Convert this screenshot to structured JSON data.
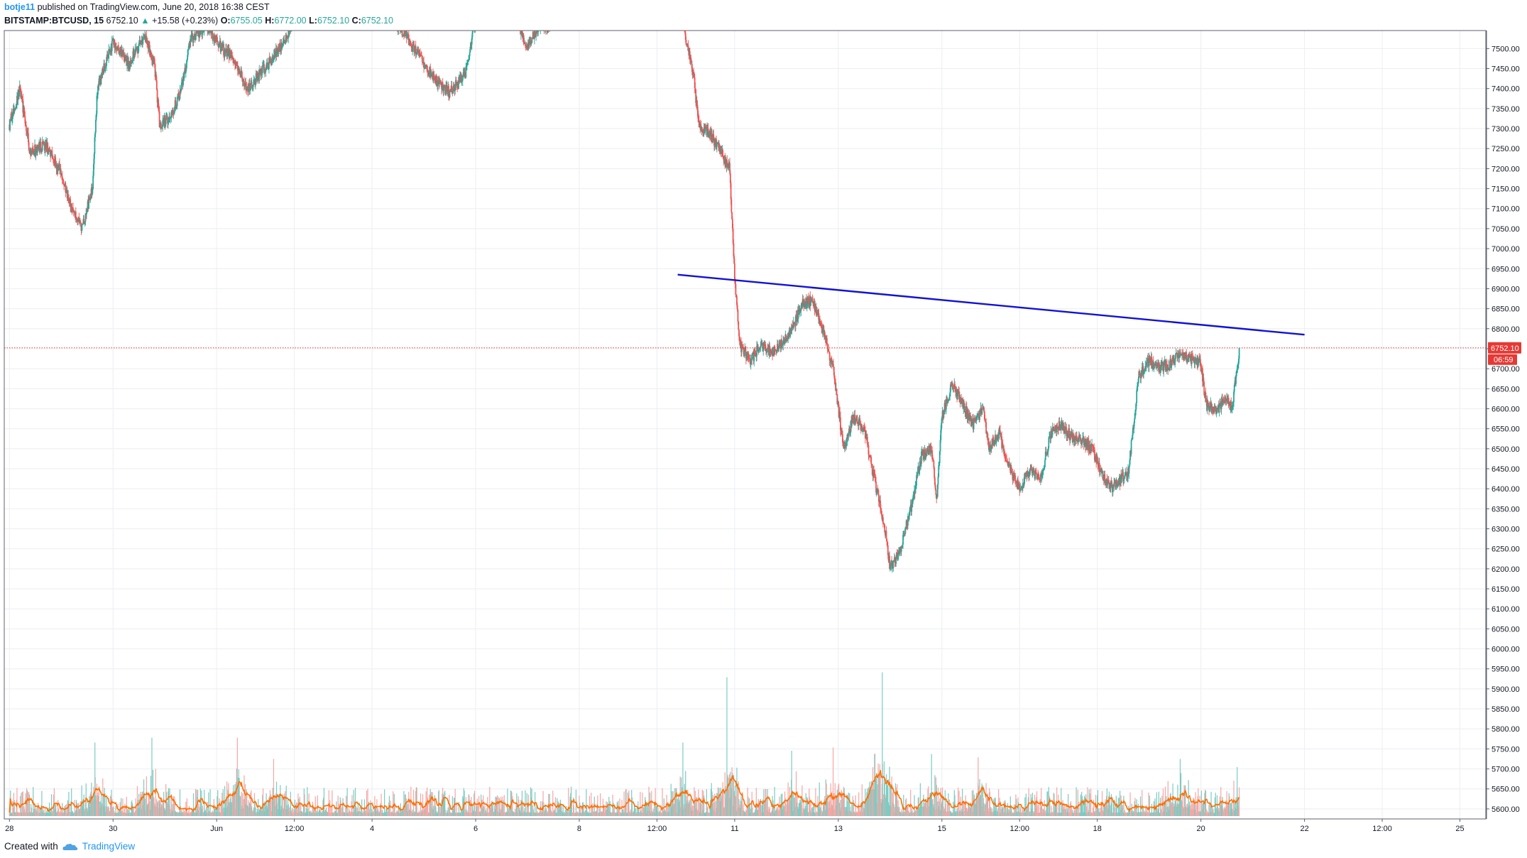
{
  "header": {
    "user": "botje11",
    "published": "published on TradingView.com, June 20, 2018 16:38 CEST",
    "symbol": "BITSTAMP:BTCUSD, 15",
    "last": "6752.10",
    "change_arrow": "▲",
    "change": "+15.58 (+0.23%)",
    "o_label": "O:",
    "o": "6755.05",
    "h_label": "H:",
    "h": "6772.00",
    "l_label": "L:",
    "l": "6752.10",
    "c_label": "C:",
    "c": "6752.10"
  },
  "footer": {
    "created_with": "Created with",
    "brand": "TradingView",
    "logo_icon": "tradingview-cloud-icon"
  },
  "colors": {
    "up": "#26a69a",
    "down": "#ef5350",
    "trendline": "#1212d6",
    "price_line": "#e53935",
    "volume_ma": "#ff6f00"
  },
  "chart_data": {
    "type": "candlestick",
    "timeframe": "15",
    "y_axis": {
      "ticks": [
        7500,
        7450,
        7400,
        7350,
        7300,
        7250,
        7200,
        7150,
        7100,
        7050,
        7000,
        6950,
        6900,
        6850,
        6800,
        6750,
        6700,
        6650,
        6600,
        6550,
        6500,
        6450,
        6400,
        6350,
        6300,
        6250,
        6200,
        6150,
        6100,
        6050,
        6000,
        5950,
        5900,
        5850,
        5800,
        5750,
        5700,
        5650,
        5600
      ],
      "tick_labels": [
        "7500.00",
        "7450.00",
        "7400.00",
        "7350.00",
        "7300.00",
        "7250.00",
        "7200.00",
        "7150.00",
        "7100.00",
        "7050.00",
        "7000.00",
        "6950.00",
        "6900.00",
        "6850.00",
        "6800.00",
        "6750.00",
        "6700.00",
        "6650.00",
        "6600.00",
        "6550.00",
        "6500.00",
        "6450.00",
        "6400.00",
        "6350.00",
        "6300.00",
        "6250.00",
        "6200.00",
        "6150.00",
        "6100.00",
        "6050.00",
        "6000.00",
        "5950.00",
        "5900.00",
        "5850.00",
        "5800.00",
        "5750.00",
        "5700.00",
        "5650.00",
        "5600.00"
      ],
      "range": [
        5575,
        7545
      ]
    },
    "x_axis": {
      "range_days": [
        -0.1,
        28.5
      ],
      "ticks": [
        {
          "day": 0.0,
          "label": "28"
        },
        {
          "day": 2.0,
          "label": "30"
        },
        {
          "day": 4.0,
          "label": "Jun"
        },
        {
          "day": 5.5,
          "label": "12:00"
        },
        {
          "day": 7.0,
          "label": "4"
        },
        {
          "day": 9.0,
          "label": "6"
        },
        {
          "day": 11.0,
          "label": "8"
        },
        {
          "day": 12.5,
          "label": "12:00"
        },
        {
          "day": 14.0,
          "label": "11"
        },
        {
          "day": 16.0,
          "label": "13"
        },
        {
          "day": 18.0,
          "label": "15"
        },
        {
          "day": 19.5,
          "label": "12:00"
        },
        {
          "day": 21.0,
          "label": "18"
        },
        {
          "day": 23.0,
          "label": "20"
        },
        {
          "day": 25.0,
          "label": "22"
        },
        {
          "day": 26.5,
          "label": "12:00"
        },
        {
          "day": 28.0,
          "label": "25"
        }
      ]
    },
    "price_path": [
      [
        0.0,
        7310
      ],
      [
        0.2,
        7400
      ],
      [
        0.4,
        7240
      ],
      [
        0.7,
        7260
      ],
      [
        1.0,
        7190
      ],
      [
        1.2,
        7100
      ],
      [
        1.4,
        7050
      ],
      [
        1.6,
        7150
      ],
      [
        1.7,
        7400
      ],
      [
        2.0,
        7520
      ],
      [
        2.3,
        7460
      ],
      [
        2.6,
        7530
      ],
      [
        2.8,
        7460
      ],
      [
        2.9,
        7310
      ],
      [
        3.1,
        7330
      ],
      [
        3.3,
        7390
      ],
      [
        3.5,
        7520
      ],
      [
        3.8,
        7560
      ],
      [
        4.1,
        7500
      ],
      [
        4.3,
        7480
      ],
      [
        4.6,
        7400
      ],
      [
        4.8,
        7430
      ],
      [
        5.1,
        7480
      ],
      [
        5.3,
        7520
      ],
      [
        5.5,
        7570
      ],
      [
        6.0,
        7700
      ],
      [
        7.0,
        7680
      ],
      [
        7.5,
        7560
      ],
      [
        7.7,
        7520
      ],
      [
        8.0,
        7460
      ],
      [
        8.3,
        7410
      ],
      [
        8.5,
        7390
      ],
      [
        8.8,
        7440
      ],
      [
        9.0,
        7570
      ],
      [
        9.5,
        7650
      ],
      [
        9.9,
        7530
      ],
      [
        10.0,
        7505
      ],
      [
        10.2,
        7550
      ],
      [
        11.5,
        7620
      ],
      [
        12.5,
        7650
      ],
      [
        13.0,
        7560
      ],
      [
        13.2,
        7440
      ],
      [
        13.3,
        7310
      ],
      [
        13.5,
        7290
      ],
      [
        13.7,
        7250
      ],
      [
        13.9,
        7200
      ],
      [
        14.0,
        6930
      ],
      [
        14.1,
        6760
      ],
      [
        14.3,
        6720
      ],
      [
        14.5,
        6760
      ],
      [
        14.7,
        6740
      ],
      [
        14.9,
        6760
      ],
      [
        15.1,
        6800
      ],
      [
        15.3,
        6860
      ],
      [
        15.5,
        6870
      ],
      [
        15.7,
        6800
      ],
      [
        15.9,
        6700
      ],
      [
        16.1,
        6500
      ],
      [
        16.3,
        6580
      ],
      [
        16.5,
        6550
      ],
      [
        16.7,
        6420
      ],
      [
        16.9,
        6300
      ],
      [
        17.0,
        6200
      ],
      [
        17.2,
        6250
      ],
      [
        17.4,
        6350
      ],
      [
        17.6,
        6480
      ],
      [
        17.8,
        6500
      ],
      [
        17.9,
        6380
      ],
      [
        18.0,
        6580
      ],
      [
        18.2,
        6660
      ],
      [
        18.4,
        6610
      ],
      [
        18.6,
        6560
      ],
      [
        18.8,
        6600
      ],
      [
        18.9,
        6500
      ],
      [
        19.1,
        6540
      ],
      [
        19.3,
        6450
      ],
      [
        19.5,
        6400
      ],
      [
        19.7,
        6450
      ],
      [
        19.9,
        6420
      ],
      [
        20.1,
        6540
      ],
      [
        20.3,
        6560
      ],
      [
        20.5,
        6530
      ],
      [
        20.7,
        6520
      ],
      [
        20.9,
        6500
      ],
      [
        21.1,
        6430
      ],
      [
        21.3,
        6400
      ],
      [
        21.5,
        6430
      ],
      [
        21.6,
        6440
      ],
      [
        21.8,
        6680
      ],
      [
        22.0,
        6720
      ],
      [
        22.2,
        6700
      ],
      [
        22.4,
        6710
      ],
      [
        22.6,
        6740
      ],
      [
        22.8,
        6720
      ],
      [
        23.0,
        6710
      ],
      [
        23.1,
        6610
      ],
      [
        23.3,
        6600
      ],
      [
        23.5,
        6620
      ],
      [
        23.6,
        6600
      ],
      [
        23.75,
        6752
      ]
    ],
    "trendline": {
      "x1": 12.9,
      "y1": 6935,
      "x2": 25.0,
      "y2": 6785
    },
    "last_price": {
      "value": 6752.1,
      "label": "6752.10",
      "countdown": "06:59"
    },
    "volume_spikes": [
      {
        "day": 1.65,
        "h": 0.45
      },
      {
        "day": 2.75,
        "h": 0.48
      },
      {
        "day": 4.4,
        "h": 0.48
      },
      {
        "day": 5.1,
        "h": 0.35
      },
      {
        "day": 13.0,
        "h": 0.45
      },
      {
        "day": 13.85,
        "h": 0.85
      },
      {
        "day": 15.1,
        "h": 0.4
      },
      {
        "day": 15.9,
        "h": 0.42
      },
      {
        "day": 16.7,
        "h": 0.38
      },
      {
        "day": 16.85,
        "h": 0.88
      },
      {
        "day": 17.8,
        "h": 0.38
      },
      {
        "day": 18.7,
        "h": 0.36
      },
      {
        "day": 22.6,
        "h": 0.35
      },
      {
        "day": 23.7,
        "h": 0.3
      }
    ]
  }
}
